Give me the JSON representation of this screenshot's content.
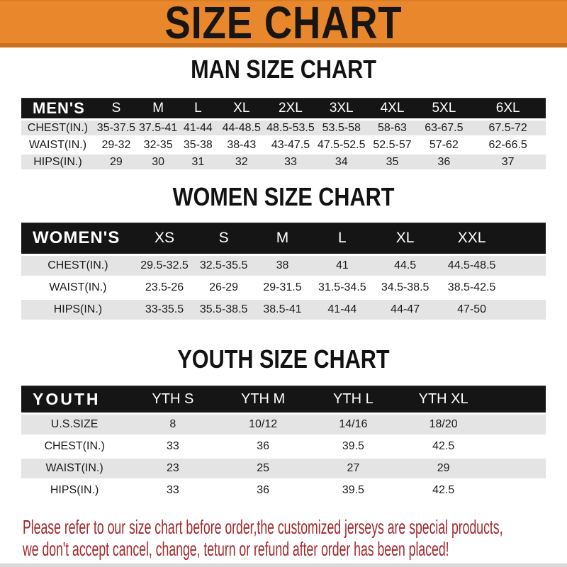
{
  "banner": {
    "title": "SIZE CHART",
    "bg_color": "#E8872B",
    "edge_color": "#C9701D",
    "text_color": "#181512"
  },
  "colors": {
    "table_header_bg": "#151515",
    "table_header_text": "#ffffff",
    "row_stripe": "#E4E4E4",
    "body_text": "#1c1c1c",
    "footer_text": "#A3282C"
  },
  "sections": [
    {
      "heading": "MAN SIZE CHART",
      "table": {
        "label": "MEN'S",
        "columns": [
          "S",
          "M",
          "L",
          "XL",
          "2XL",
          "3XL",
          "4XL",
          "5XL",
          "6XL"
        ],
        "rows": [
          {
            "label": "CHEST(IN.)",
            "values": [
              "35-37.5",
              "37.5-41",
              "41-44",
              "44-48.5",
              "48.5-53.5",
              "53.5-58",
              "58-63",
              "63-67.5",
              "67.5-72"
            ]
          },
          {
            "label": "WAIST(IN.)",
            "values": [
              "29-32",
              "32-35",
              "35-38",
              "38-43",
              "43-47.5",
              "47.5-52.5",
              "52.5-57",
              "57-62",
              "62-66.5"
            ]
          },
          {
            "label": "HIPS(IN.)",
            "values": [
              "29",
              "30",
              "31",
              "32",
              "33",
              "34",
              "35",
              "36",
              "37"
            ]
          }
        ]
      }
    },
    {
      "heading": "WOMEN SIZE CHART",
      "table": {
        "label": "WOMEN'S",
        "columns": [
          "XS",
          "S",
          "M",
          "L",
          "XL",
          "XXL"
        ],
        "rows": [
          {
            "label": "CHEST(IN.)",
            "values": [
              "29.5-32.5",
              "32.5-35.5",
              "38",
              "41",
              "44.5",
              "44.5-48.5"
            ]
          },
          {
            "label": "WAIST(IN.)",
            "values": [
              "23.5-26",
              "26-29",
              "29-31.5",
              "31.5-34.5",
              "34.5-38.5",
              "38.5-42.5"
            ]
          },
          {
            "label": "HIPS(IN.)",
            "values": [
              "33-35.5",
              "35.5-38.5",
              "38.5-41",
              "41-44",
              "44-47",
              "47-50"
            ]
          }
        ]
      }
    },
    {
      "heading": "YOUTH SIZE CHART",
      "table": {
        "label": "YOUTH",
        "columns": [
          "YTH S",
          "YTH M",
          "YTH L",
          "YTH XL"
        ],
        "rows": [
          {
            "label": "U.S.SIZE",
            "values": [
              "8",
              "10/12",
              "14/16",
              "18/20"
            ]
          },
          {
            "label": "CHEST(IN.)",
            "values": [
              "33",
              "36",
              "39.5",
              "42.5"
            ]
          },
          {
            "label": "WAIST(IN.)",
            "values": [
              "23",
              "25",
              "27",
              "29"
            ]
          },
          {
            "label": "HIPS(IN.)",
            "values": [
              "33",
              "36",
              "39.5",
              "42.5"
            ]
          }
        ]
      }
    }
  ],
  "footer": {
    "line1": "Please refer to our size chart before order,the customized jerseys are special products,",
    "line2": "we don't accept cancel, change, teturn or refund after order has been placed!"
  }
}
